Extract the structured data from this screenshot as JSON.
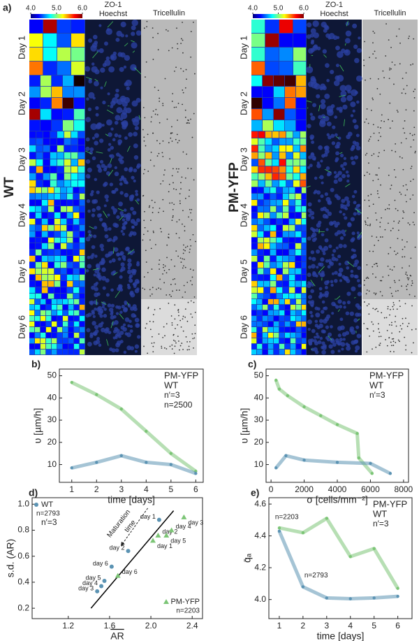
{
  "panel_a": {
    "label": "a)",
    "colorbar_lim": [
      4.0,
      6.0
    ],
    "colorbar_ticks": [
      {
        "value": 4.0,
        "label": "4.0"
      },
      {
        "value": 5.0,
        "label": "5.0"
      },
      {
        "value": 6.0,
        "label": "6.0"
      }
    ],
    "groups": [
      {
        "name": "WT",
        "color": "#5b93b3",
        "channel_top": "ZO-1",
        "channel_bottom": "Hoechst",
        "channel_right": "Tricellulin",
        "days": [
          "Day 1",
          "Day 2",
          "Day 3",
          "Day 4",
          "Day 5",
          "Day 6"
        ]
      },
      {
        "name": "PM-YFP",
        "color": "#7cc576",
        "channel_top": "ZO-1",
        "channel_bottom": "Hoechst",
        "channel_right": "Tricellulin",
        "days": [
          "Day 1",
          "Day 2",
          "Day 3",
          "Day 4",
          "Day 5",
          "Day 6"
        ]
      }
    ]
  },
  "chart_data": [
    {
      "type": "line",
      "panel": "b)",
      "x_label": "time [days]",
      "y_label": "υ [µm/h]",
      "xlim": [
        0.5,
        6.3
      ],
      "ylim": [
        2,
        53
      ],
      "xticks": [
        1,
        2,
        3,
        4,
        5,
        6
      ],
      "yticks": [
        10,
        20,
        30,
        40,
        50
      ],
      "x": [
        1,
        2,
        3,
        4,
        5,
        6
      ],
      "legend": "upper right",
      "notes": [
        "n′=3",
        "n=2500"
      ],
      "series": [
        {
          "name": "PM-YFP",
          "color": "#7cc576",
          "values": [
            47,
            41.5,
            35,
            25,
            15,
            7
          ]
        },
        {
          "name": "WT",
          "color": "#5b93b3",
          "values": [
            8.5,
            11,
            14,
            11,
            10,
            6
          ]
        }
      ]
    },
    {
      "type": "line",
      "panel": "c)",
      "x_label": "σ [cells/mm⁻²]",
      "y_label": "υ [µm/h]",
      "xlim": [
        -300,
        8300
      ],
      "ylim": [
        2,
        53
      ],
      "xticks": [
        0,
        2000,
        4000,
        6000,
        8000
      ],
      "yticks": [
        10,
        20,
        30,
        40,
        50
      ],
      "legend": "upper right",
      "notes": [
        "n′=3"
      ],
      "series": [
        {
          "name": "PM-YFP",
          "color": "#7cc576",
          "x": [
            300,
            500,
            1000,
            2000,
            3000,
            4000,
            5200,
            5300,
            6100
          ],
          "values": [
            48,
            44,
            41,
            36,
            32,
            28,
            24,
            13,
            6
          ]
        },
        {
          "name": "WT",
          "color": "#5b93b3",
          "x": [
            300,
            900,
            2000,
            4000,
            6000,
            7200
          ],
          "values": [
            8.5,
            14,
            12,
            11,
            10.5,
            6
          ]
        }
      ]
    },
    {
      "type": "scatter",
      "panel": "d)",
      "x_label": "AR",
      "y_label": "s.d. (AR)",
      "xlim": [
        0.85,
        2.5
      ],
      "ylim": [
        0.12,
        1.05
      ],
      "xticks": [
        1.2,
        1.6,
        {
          "value": 2.0,
          "label": "2.0"
        },
        2.4
      ],
      "yticks": [
        0.2,
        0.4,
        0.6,
        0.8,
        {
          "value": 1.0,
          "label": "1.0"
        }
      ],
      "notes": [
        "n′=3"
      ],
      "annotations": [
        "Maturation",
        "time"
      ],
      "fit": {
        "x": [
          1.42,
          2.22
        ],
        "values": [
          0.2,
          0.95
        ],
        "color": "#000000"
      },
      "series": [
        {
          "name": "WT",
          "color": "#5b93b3",
          "marker": "circle",
          "legend": "upper left",
          "notes": [
            "n=2793"
          ],
          "x": [
            2.08,
            1.78,
            1.48,
            1.52,
            1.55,
            1.62
          ],
          "values": [
            0.88,
            0.64,
            0.33,
            0.37,
            0.41,
            0.52
          ],
          "point_labels": [
            "day 1",
            "day 2",
            "day 3",
            "day 4",
            "day 5",
            "day 6"
          ]
        },
        {
          "name": "PM-YFP",
          "color": "#7cc576",
          "marker": "triangle",
          "legend": "lower right",
          "notes": [
            "n=2203"
          ],
          "x": [
            2.02,
            2.07,
            2.32,
            2.2,
            2.15,
            1.68
          ],
          "values": [
            0.72,
            0.76,
            0.9,
            0.8,
            0.76,
            0.45
          ],
          "point_labels": [
            "day 1",
            "day 2",
            "day 3",
            "day 4",
            "day 5",
            "day 6"
          ]
        }
      ]
    },
    {
      "type": "line",
      "panel": "e)",
      "x_label": "time [days]",
      "y_label": "q̄ₐ",
      "xlim": [
        0.56,
        6.6
      ],
      "ylim": [
        3.88,
        4.64
      ],
      "xticks": [
        1,
        2,
        3,
        4,
        5,
        6
      ],
      "yticks": [
        {
          "value": 4.0,
          "label": "4.0"
        },
        4.2,
        4.4,
        4.6
      ],
      "x": [
        1,
        2,
        3,
        4,
        5,
        6
      ],
      "legend": "upper right",
      "notes": [
        "n′=3"
      ],
      "series": [
        {
          "name": "PM-YFP",
          "color": "#7cc576",
          "curve_label": "n=2203",
          "values": [
            4.45,
            4.42,
            4.51,
            4.27,
            4.32,
            4.07
          ]
        },
        {
          "name": "WT",
          "color": "#5b93b3",
          "curve_label": "n=2793",
          "values": [
            4.43,
            4.08,
            4.01,
            4.005,
            4.01,
            4.02
          ]
        }
      ]
    }
  ]
}
